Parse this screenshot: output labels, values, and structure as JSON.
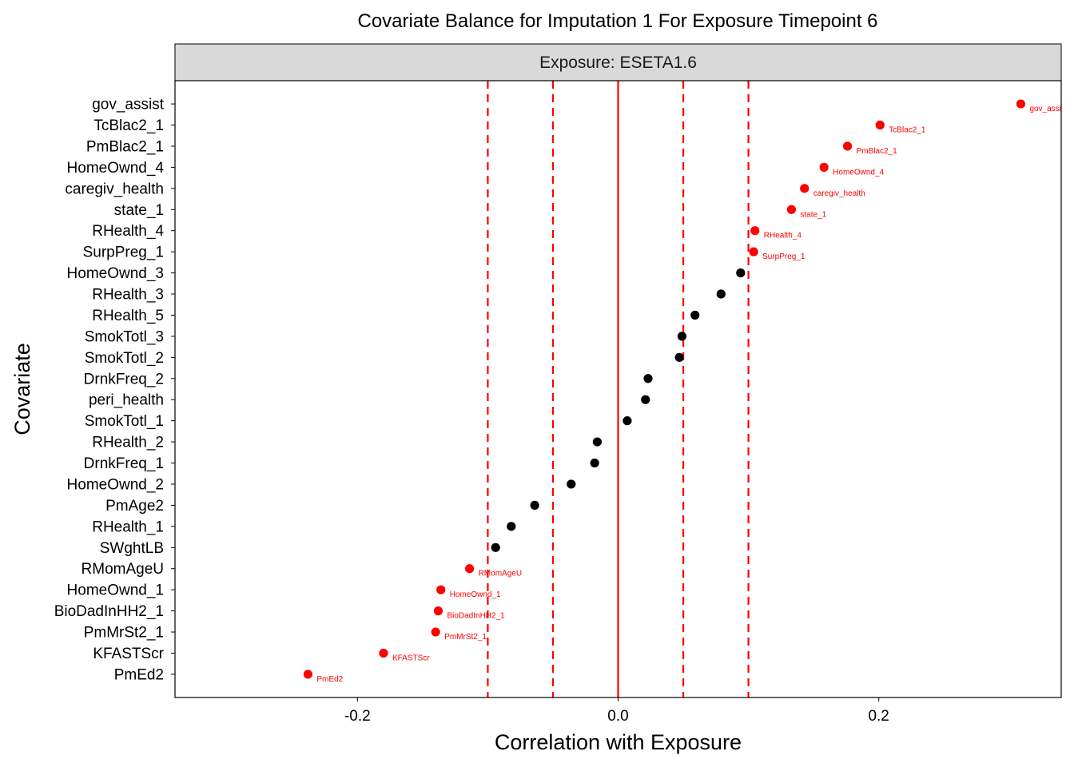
{
  "chart_data": {
    "type": "scatter",
    "title": "Covariate Balance for Imputation 1 For Exposure Timepoint 6",
    "facet_label": "Exposure: ESETA1.6",
    "xlabel": "Correlation with Exposure",
    "ylabel": "Covariate",
    "xlim": [
      -0.34,
      0.34
    ],
    "x_ticks": [
      {
        "value": -0.2,
        "label": "-0.2"
      },
      {
        "value": 0.0,
        "label": "0.0"
      },
      {
        "value": 0.2,
        "label": "0.2"
      }
    ],
    "reference_lines": {
      "solid": [
        0.0
      ],
      "dashed": [
        -0.1,
        -0.05,
        0.05,
        0.1
      ],
      "color": "#ff0000"
    },
    "colors": {
      "imbalanced": "#ff0000",
      "balanced": "#000000",
      "strip_bg": "#d9d9d9"
    },
    "grid": false,
    "legend": "none",
    "points": [
      {
        "covariate": "gov_assist",
        "value": 0.309,
        "imbalanced": true
      },
      {
        "covariate": "TcBlac2_1",
        "value": 0.201,
        "imbalanced": true
      },
      {
        "covariate": "PmBlac2_1",
        "value": 0.176,
        "imbalanced": true
      },
      {
        "covariate": "HomeOwnd_4",
        "value": 0.158,
        "imbalanced": true
      },
      {
        "covariate": "caregiv_health",
        "value": 0.143,
        "imbalanced": true
      },
      {
        "covariate": "state_1",
        "value": 0.133,
        "imbalanced": true
      },
      {
        "covariate": "RHealth_4",
        "value": 0.105,
        "imbalanced": true
      },
      {
        "covariate": "SurpPreg_1",
        "value": 0.104,
        "imbalanced": true
      },
      {
        "covariate": "HomeOwnd_3",
        "value": 0.094,
        "imbalanced": false
      },
      {
        "covariate": "RHealth_3",
        "value": 0.079,
        "imbalanced": false
      },
      {
        "covariate": "RHealth_5",
        "value": 0.059,
        "imbalanced": false
      },
      {
        "covariate": "SmokTotl_3",
        "value": 0.049,
        "imbalanced": false
      },
      {
        "covariate": "SmokTotl_2",
        "value": 0.047,
        "imbalanced": false
      },
      {
        "covariate": "DrnkFreq_2",
        "value": 0.023,
        "imbalanced": false
      },
      {
        "covariate": "peri_health",
        "value": 0.021,
        "imbalanced": false
      },
      {
        "covariate": "SmokTotl_1",
        "value": 0.007,
        "imbalanced": false
      },
      {
        "covariate": "RHealth_2",
        "value": -0.016,
        "imbalanced": false
      },
      {
        "covariate": "DrnkFreq_1",
        "value": -0.018,
        "imbalanced": false
      },
      {
        "covariate": "HomeOwnd_2",
        "value": -0.036,
        "imbalanced": false
      },
      {
        "covariate": "PmAge2",
        "value": -0.064,
        "imbalanced": false
      },
      {
        "covariate": "RHealth_1",
        "value": -0.082,
        "imbalanced": false
      },
      {
        "covariate": "SWghtLB",
        "value": -0.094,
        "imbalanced": false
      },
      {
        "covariate": "RMomAgeU",
        "value": -0.114,
        "imbalanced": true
      },
      {
        "covariate": "HomeOwnd_1",
        "value": -0.136,
        "imbalanced": true
      },
      {
        "covariate": "BioDadInHH2_1",
        "value": -0.138,
        "imbalanced": true
      },
      {
        "covariate": "PmMrSt2_1",
        "value": -0.14,
        "imbalanced": true
      },
      {
        "covariate": "KFASTScr",
        "value": -0.18,
        "imbalanced": true
      },
      {
        "covariate": "PmEd2",
        "value": -0.238,
        "imbalanced": true
      }
    ]
  }
}
